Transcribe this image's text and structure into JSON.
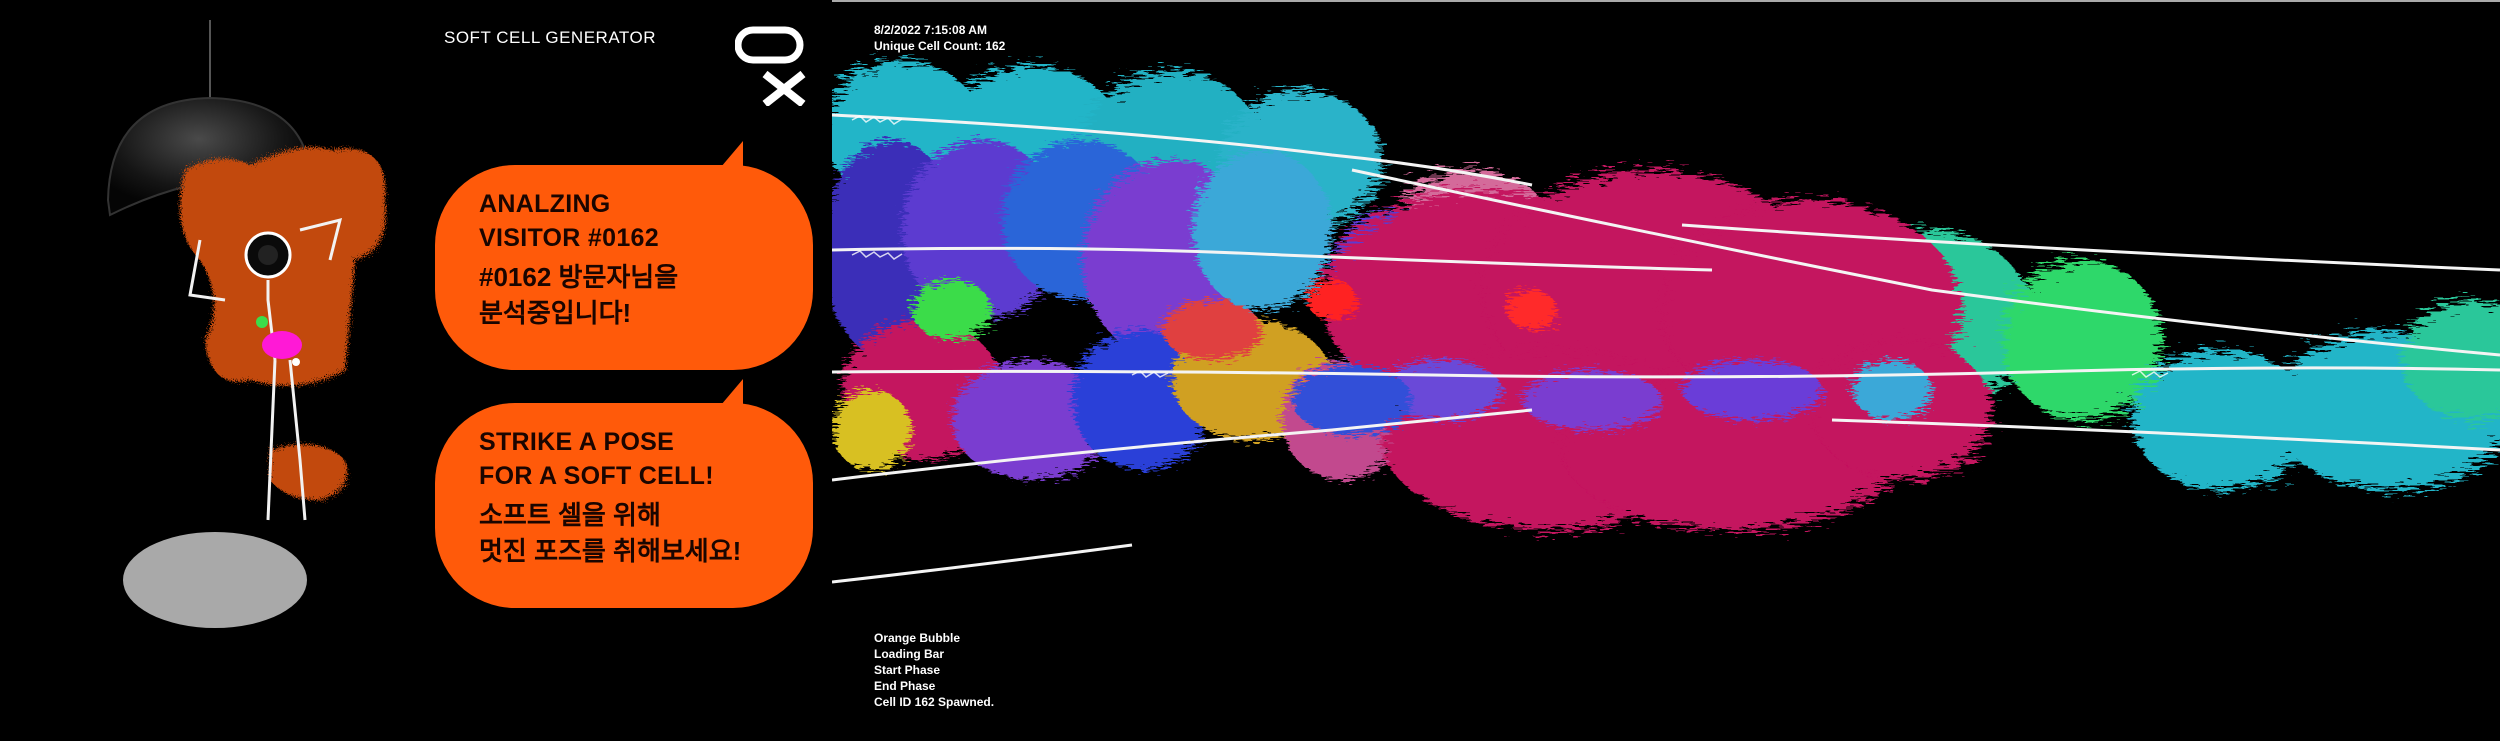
{
  "app_title": "SOFT CELL GENERATOR",
  "logo_icon": "ox-logo-icon",
  "bubble_analyzing": {
    "line1": "ANALZING",
    "line2": "VISITOR #0162",
    "ko_line1": "#0162 방문자님을",
    "ko_line2": "분석중입니다!"
  },
  "bubble_pose": {
    "line1": "STRIKE A POSE",
    "line2": "FOR A SOFT CELL!",
    "ko_line1": "소프트 셀을 위해",
    "ko_line2": "멋진 포즈를 취해보세요!"
  },
  "status_top": {
    "timestamp": "8/2/2022 7:15:08 AM",
    "cell_count": "Unique Cell Count: 162"
  },
  "log": [
    "Orange Bubble",
    "Loading Bar",
    "Start Phase",
    "End Phase",
    "Cell ID 162 Spawned."
  ],
  "colors": {
    "bubble": "#ff5a0a",
    "figure_fur": "#c24a0e",
    "magenta_cell": "#c4125e",
    "cyan_cell": "#22b5c8",
    "background": "#000000"
  }
}
